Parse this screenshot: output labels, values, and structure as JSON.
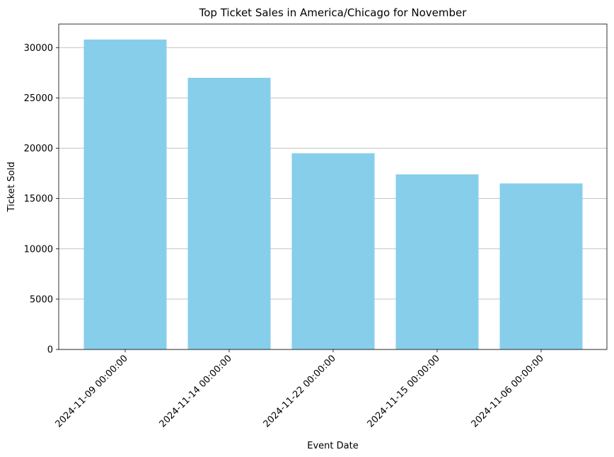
{
  "chart_data": {
    "type": "bar",
    "title": "Top Ticket Sales in America/Chicago for November",
    "xlabel": "Event Date",
    "ylabel": "Ticket Sold",
    "categories": [
      "2024-11-09 00:00:00",
      "2024-11-14 00:00:00",
      "2024-11-22 00:00:00",
      "2024-11-15 00:00:00",
      "2024-11-06 00:00:00"
    ],
    "values": [
      30800,
      27000,
      19500,
      17400,
      16500
    ],
    "ylim": [
      0,
      32340
    ],
    "yticks": [
      0,
      5000,
      10000,
      15000,
      20000,
      25000,
      30000
    ],
    "ytick_labels": [
      "0",
      "5000",
      "10000",
      "15000",
      "20000",
      "25000",
      "30000"
    ],
    "grid": "y-axis horizontal",
    "bar_color": "#87CEEB",
    "grid_color": "#b0b0b0",
    "xtick_rotation": 45
  }
}
